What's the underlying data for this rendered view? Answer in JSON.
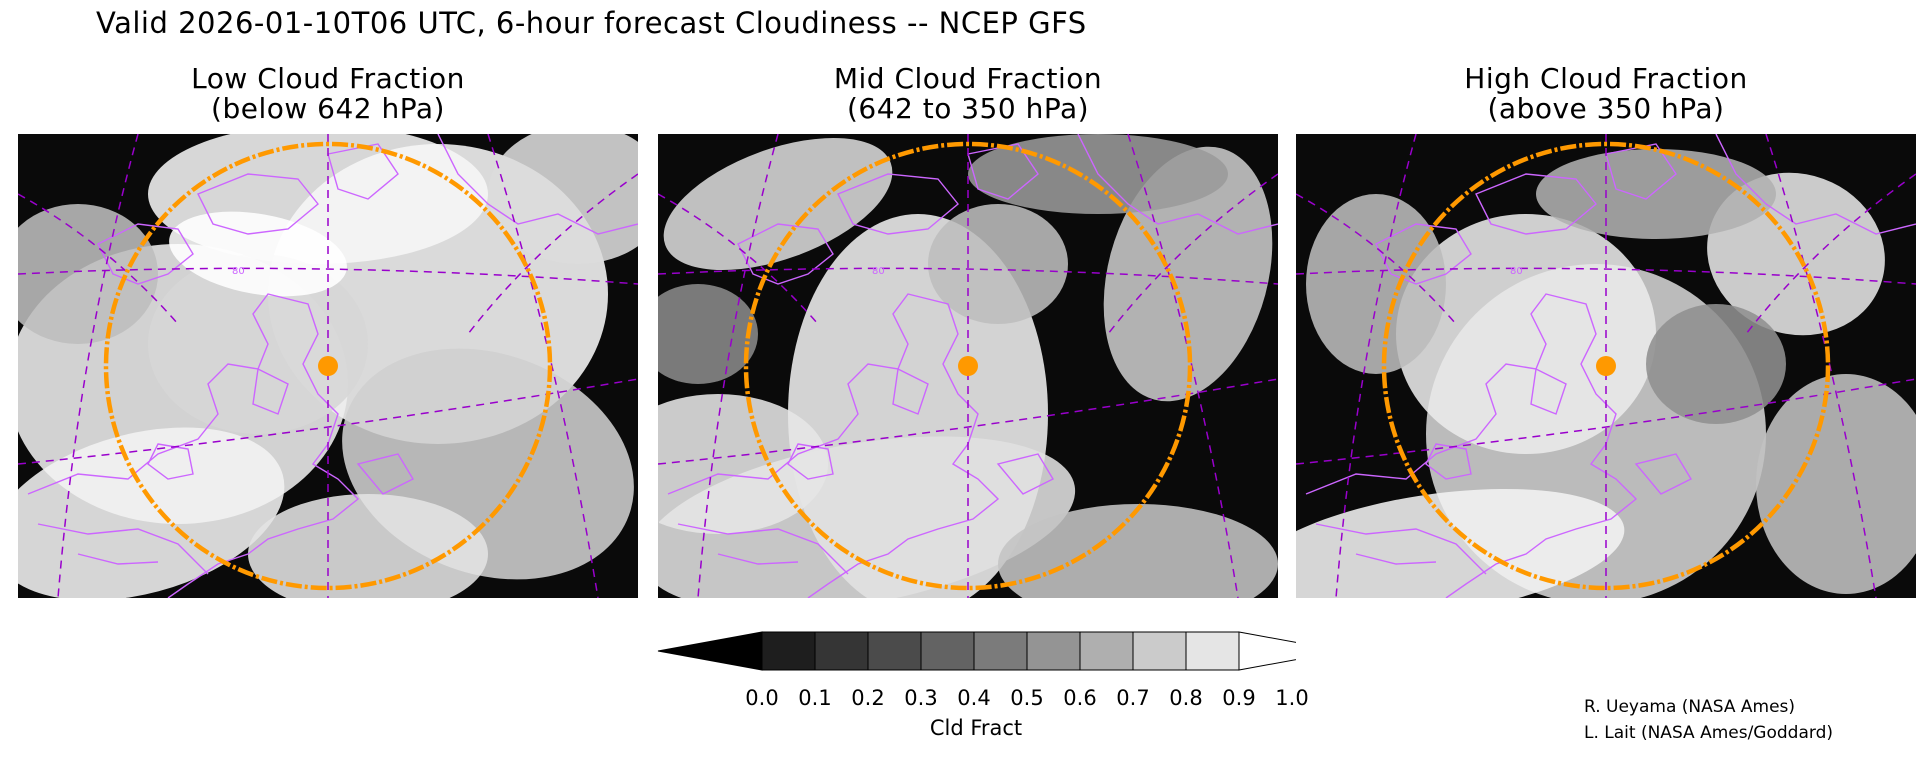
{
  "header": {
    "title": "Valid 2026-01-10T06 UTC, 6-hour forecast Cloudiness -- NCEP GFS"
  },
  "panels": [
    {
      "title_line1": "Low Cloud Fraction",
      "title_line2": "(below 642 hPa)",
      "cloud_pattern": "low"
    },
    {
      "title_line1": "Mid Cloud Fraction",
      "title_line2": "(642 to 350 hPa)",
      "cloud_pattern": "mid"
    },
    {
      "title_line1": "High Cloud Fraction",
      "title_line2": "(above 350 hPa)",
      "cloud_pattern": "high"
    }
  ],
  "map": {
    "coastline_color": "#cc66ff",
    "graticule_color": "#9900cc",
    "range_ring_color": "#ff9900",
    "site_marker_color": "#ff9900",
    "graticule_labels": [
      "80",
      "80",
      "80"
    ]
  },
  "colorbar": {
    "label": "Cld Fract",
    "ticks": [
      "0.0",
      "0.1",
      "0.2",
      "0.3",
      "0.4",
      "0.5",
      "0.6",
      "0.7",
      "0.8",
      "0.9",
      "1.0"
    ],
    "colors": [
      "#000000",
      "#1e1e1e",
      "#353535",
      "#4b4b4b",
      "#636363",
      "#7b7b7b",
      "#949494",
      "#afafaf",
      "#cbcbcb",
      "#e5e5e5",
      "#ffffff"
    ]
  },
  "credits": {
    "line1": "R. Ueyama (NASA Ames)",
    "line2": "L. Lait (NASA Ames/Goddard)"
  }
}
